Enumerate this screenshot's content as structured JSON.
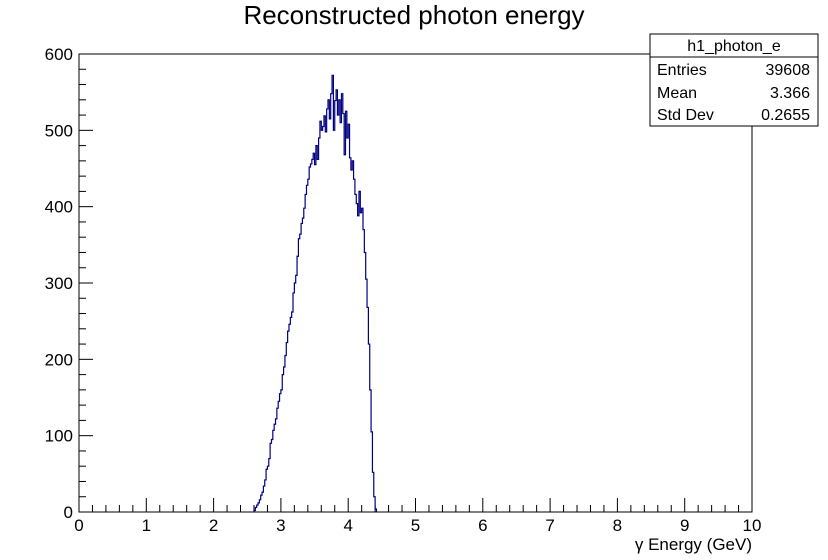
{
  "chart_data": {
    "type": "bar",
    "title": "Reconstructed photon energy",
    "xlabel": "γ Energy (GeV)",
    "ylabel": "",
    "xlim": [
      0,
      10
    ],
    "ylim": [
      0,
      600
    ],
    "x_ticks": [
      "0",
      "1",
      "2",
      "3",
      "4",
      "5",
      "6",
      "7",
      "8",
      "9",
      "10"
    ],
    "y_ticks": [
      "0",
      "100",
      "200",
      "300",
      "400",
      "500",
      "600"
    ],
    "grid": false,
    "bin_width": 0.02,
    "bins_start": 2.6,
    "values": [
      2,
      6,
      9,
      12,
      16,
      22,
      26,
      34,
      42,
      56,
      60,
      70,
      90,
      95,
      107,
      115,
      122,
      136,
      145,
      155,
      160,
      180,
      190,
      205,
      222,
      237,
      246,
      255,
      262,
      287,
      300,
      310,
      335,
      358,
      364,
      378,
      385,
      398,
      416,
      428,
      436,
      452,
      456,
      462,
      470,
      455,
      480,
      462,
      490,
      512,
      500,
      505,
      519,
      498,
      528,
      540,
      515,
      548,
      572,
      500,
      539,
      553,
      520,
      540,
      510,
      548,
      522,
      468,
      525,
      490,
      508,
      464,
      448,
      460,
      436,
      416,
      404,
      388,
      420,
      392,
      398,
      370,
      340,
      305,
      268,
      220,
      160,
      105,
      52,
      20,
      4
    ],
    "color": "#000080",
    "stats": {
      "name": "h1_photon_e",
      "rows": [
        {
          "label": "Entries",
          "value": "39608"
        },
        {
          "label": "Mean",
          "value": "3.366"
        },
        {
          "label": "Std Dev",
          "value": "0.2655"
        }
      ]
    }
  }
}
